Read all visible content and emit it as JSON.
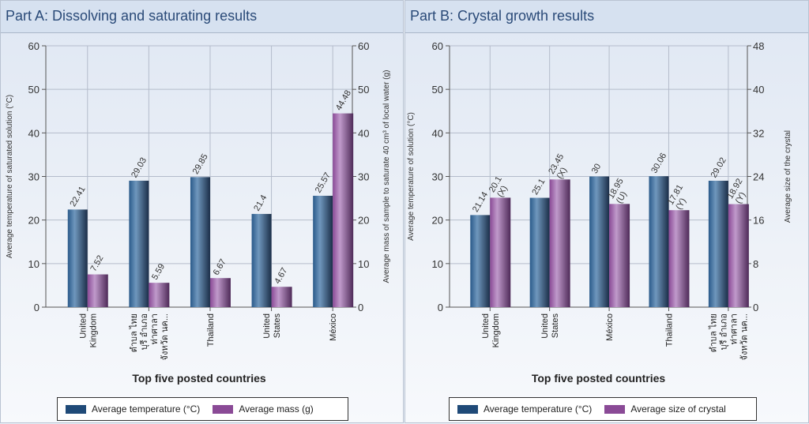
{
  "panels": [
    {
      "title": "Part A: Dissolving and saturating results",
      "legend": [
        {
          "label": "Average temperature (°C)",
          "color": "#1f4a78"
        },
        {
          "label": "Average mass (g)",
          "color": "#8a4a96"
        }
      ]
    },
    {
      "title": "Part B: Crystal growth results",
      "legend": [
        {
          "label": "Average temperature (°C)",
          "color": "#1f4a78"
        },
        {
          "label": "Average size of crystal",
          "color": "#8a4a96"
        }
      ]
    }
  ],
  "colors": {
    "temperature": "#1f4a78",
    "secondary": "#8a4a96",
    "grid": "#b4bccb",
    "axis": "#555555"
  },
  "chart_data": [
    {
      "type": "bar",
      "title": "Part A: Dissolving and saturating results",
      "categories": [
        [
          "United",
          "Kingdom"
        ],
        [
          "ตำบล ไทย",
          "บุรี อำเภอ",
          "ท่าศาลา",
          "จังหวัด นค..."
        ],
        [
          "Thailand"
        ],
        [
          "United",
          "States"
        ],
        [
          "México"
        ]
      ],
      "xlabel": "Top five posted countries",
      "ylabel": "Average temperature of saturated solution (°C)",
      "ylabel_right": "Average mass of sample to saturate 40 cm³ of local water (g)",
      "ylim": [
        0,
        60
      ],
      "ylim_right": [
        0,
        60
      ],
      "yticks": [
        0,
        10,
        20,
        30,
        40,
        50,
        60
      ],
      "yticks_right": [
        0,
        10,
        20,
        30,
        40,
        50,
        60
      ],
      "grid": true,
      "legend_position": "bottom",
      "series": [
        {
          "name": "Average temperature (°C)",
          "axis": "left",
          "values": [
            22.41,
            29.03,
            29.85,
            21.4,
            25.57
          ],
          "labels": [
            "22.41",
            "29.03",
            "29.85",
            "21.4",
            "25.57"
          ]
        },
        {
          "name": "Average mass (g)",
          "axis": "right",
          "values": [
            7.52,
            5.59,
            6.67,
            4.67,
            44.48
          ],
          "labels": [
            "7.52",
            "5.59",
            "6.67",
            "4.67",
            "44.48"
          ]
        }
      ]
    },
    {
      "type": "bar",
      "title": "Part B: Crystal growth results",
      "categories": [
        [
          "United",
          "Kingdom"
        ],
        [
          "United",
          "States"
        ],
        [
          "México"
        ],
        [
          "Thailand"
        ],
        [
          "ตำบล ไทย",
          "บุรี อำเภอ",
          "ท่าศาลา",
          "จังหวัด นค..."
        ]
      ],
      "xlabel": "Top five posted countries",
      "ylabel": "Average temperature of solution (°C)",
      "ylabel_right": "Average size of the crystal",
      "ylim": [
        0,
        60
      ],
      "ylim_right": [
        0,
        48
      ],
      "yticks": [
        0,
        10,
        20,
        30,
        40,
        50,
        60
      ],
      "yticks_right": [
        0,
        8,
        16,
        24,
        32,
        40,
        48
      ],
      "grid": true,
      "legend_position": "bottom",
      "series": [
        {
          "name": "Average temperature (°C)",
          "axis": "left",
          "values": [
            21.14,
            25.1,
            30,
            30.06,
            29.02
          ],
          "labels": [
            "21.14",
            "25.1",
            "30",
            "30.06",
            "29.02"
          ]
        },
        {
          "name": "Average size of crystal",
          "axis": "right",
          "values": [
            20.1,
            23.45,
            18.95,
            17.81,
            18.92
          ],
          "labels": [
            "20.1 (X)",
            "23.45 (X)",
            "18.95 (U)",
            "17.81 (Y)",
            "18.92 (Y)"
          ]
        }
      ]
    }
  ]
}
